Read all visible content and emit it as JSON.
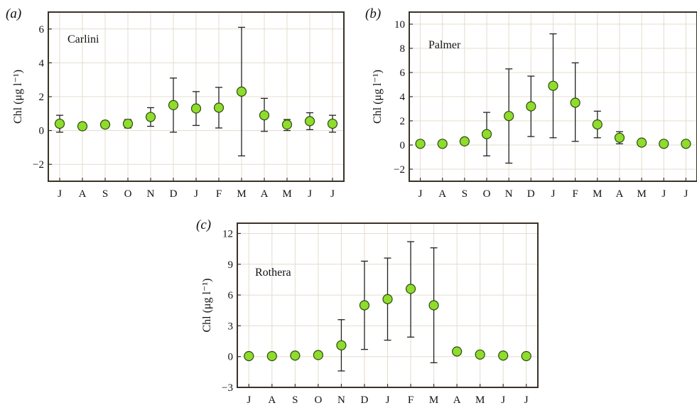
{
  "chart_data": [
    {
      "type": "scatter",
      "panel_label": "(a)",
      "annotation": "Carlini",
      "ylabel": "Chl (μg l⁻¹)",
      "categories": [
        "J",
        "A",
        "S",
        "O",
        "N",
        "D",
        "J",
        "F",
        "M",
        "A",
        "M",
        "J",
        "J"
      ],
      "ylim": [
        -3,
        7
      ],
      "yticks": [
        -2,
        0,
        2,
        4,
        6
      ],
      "grid": true,
      "marker_color": "#8fdc2c",
      "series": [
        {
          "values": [
            0.4,
            0.25,
            0.35,
            0.4,
            0.8,
            1.5,
            1.3,
            1.35,
            2.3,
            0.9,
            0.35,
            0.55,
            0.4
          ],
          "err_low": [
            0.5,
            0.2,
            0.2,
            0.25,
            0.55,
            1.6,
            1.0,
            1.2,
            3.8,
            0.95,
            0.35,
            0.5,
            0.5
          ],
          "err_high": [
            0.5,
            0.2,
            0.2,
            0.25,
            0.55,
            1.6,
            1.0,
            1.2,
            3.8,
            1.0,
            0.3,
            0.5,
            0.5
          ]
        }
      ]
    },
    {
      "type": "scatter",
      "panel_label": "(b)",
      "annotation": "Palmer",
      "ylabel": "Chl (μg l⁻¹)",
      "categories": [
        "J",
        "A",
        "S",
        "O",
        "N",
        "D",
        "J",
        "F",
        "M",
        "A",
        "M",
        "J",
        "J"
      ],
      "ylim": [
        -3,
        11
      ],
      "yticks": [
        -2,
        0,
        2,
        4,
        6,
        8,
        10
      ],
      "grid": true,
      "marker_color": "#8fdc2c",
      "series": [
        {
          "values": [
            0.1,
            0.1,
            0.3,
            0.9,
            2.4,
            3.2,
            4.9,
            3.5,
            1.7,
            0.6,
            0.2,
            0.1,
            0.1
          ],
          "err_low": [
            0.2,
            0.2,
            0.25,
            1.8,
            3.9,
            2.5,
            4.3,
            3.2,
            1.1,
            0.5,
            0.15,
            0.1,
            0.15
          ],
          "err_high": [
            0.2,
            0.2,
            0.25,
            1.8,
            3.9,
            2.5,
            4.3,
            3.3,
            1.1,
            0.5,
            0.15,
            0.1,
            0.15
          ]
        }
      ]
    },
    {
      "type": "scatter",
      "panel_label": "(c)",
      "annotation": "Rothera",
      "ylabel": "Chl (μg l⁻¹)",
      "categories": [
        "J",
        "A",
        "S",
        "O",
        "N",
        "D",
        "J",
        "F",
        "M",
        "A",
        "M",
        "J",
        "J"
      ],
      "ylim": [
        -3,
        13
      ],
      "yticks": [
        -3,
        0,
        3,
        6,
        9,
        12
      ],
      "grid": true,
      "marker_color": "#8fdc2c",
      "series": [
        {
          "values": [
            0.05,
            0.05,
            0.1,
            0.15,
            1.1,
            5.0,
            5.6,
            6.6,
            5.0,
            0.5,
            0.2,
            0.1,
            0.05
          ],
          "err_low": [
            0.1,
            0.1,
            0.1,
            0.3,
            2.5,
            4.3,
            4.0,
            4.7,
            5.6,
            0.3,
            0.2,
            0.15,
            0.1
          ],
          "err_high": [
            0.1,
            0.1,
            0.1,
            0.3,
            2.5,
            4.3,
            4.0,
            4.6,
            5.6,
            0.3,
            0.2,
            0.15,
            0.1
          ]
        }
      ]
    }
  ]
}
